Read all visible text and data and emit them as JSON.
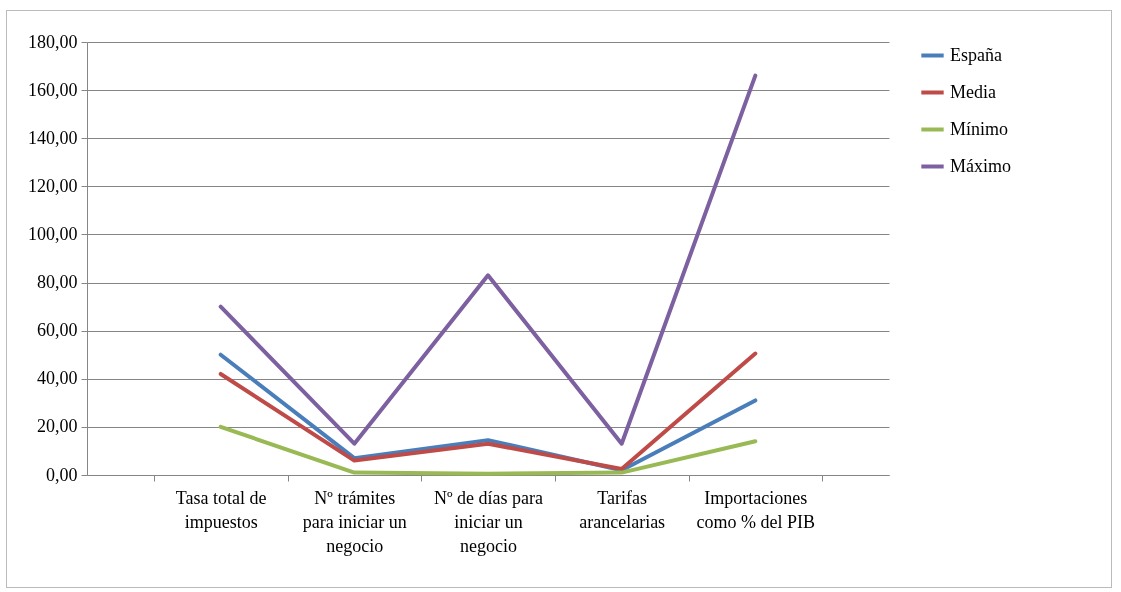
{
  "chart_data": {
    "type": "line",
    "categories": [
      "Tasa total de impuestos",
      "Nº trámites para iniciar un negocio",
      "Nº de días para iniciar un negocio",
      "Tarifas arancelarias",
      "Importaciones como % del PIB"
    ],
    "series": [
      {
        "name": "España",
        "color": "#4a7ebb",
        "values": [
          50,
          7,
          14.5,
          2,
          31
        ]
      },
      {
        "name": "Media",
        "color": "#be4b48",
        "values": [
          42,
          6,
          13,
          2.5,
          50.5
        ]
      },
      {
        "name": "Mínimo",
        "color": "#98b954",
        "values": [
          20,
          1,
          0.5,
          1,
          14
        ]
      },
      {
        "name": "Máximo",
        "color": "#7d60a0",
        "values": [
          70,
          13,
          83,
          13,
          166
        ]
      }
    ],
    "ylim": [
      0,
      180
    ],
    "yticks": [
      {
        "value": 0,
        "label": "0,00"
      },
      {
        "value": 20,
        "label": "20,00"
      },
      {
        "value": 40,
        "label": "40,00"
      },
      {
        "value": 60,
        "label": "60,00"
      },
      {
        "value": 80,
        "label": "80,00"
      },
      {
        "value": 100,
        "label": "100,00"
      },
      {
        "value": 120,
        "label": "120,00"
      },
      {
        "value": 140,
        "label": "140,00"
      },
      {
        "value": 160,
        "label": "160,00"
      },
      {
        "value": 180,
        "label": "180,00"
      }
    ],
    "grid": "y",
    "legend": "right",
    "marker": "none",
    "line_style": "solid"
  }
}
